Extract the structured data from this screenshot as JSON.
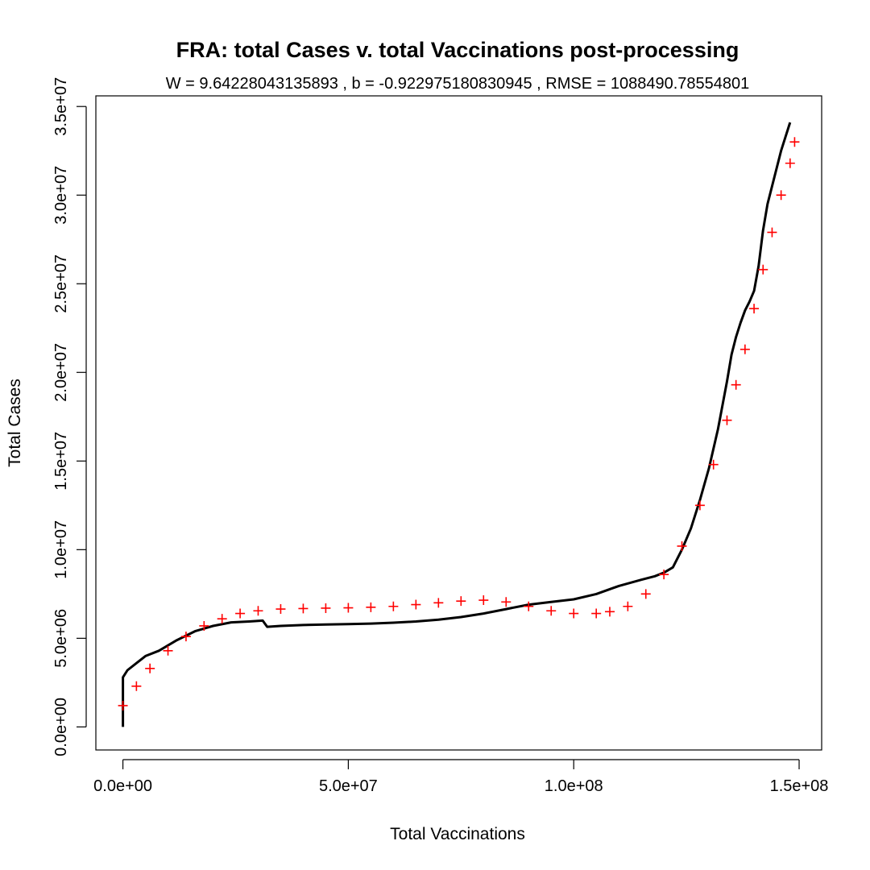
{
  "chart_data": {
    "type": "line",
    "title": "FRA: total Cases v. total Vaccinations post-processing",
    "subtitle": "W = 9.64228043135893 , b = -0.922975180830945 , RMSE = 1088490.78554801",
    "xlabel": "Total Vaccinations",
    "ylabel": "Total Cases",
    "xlim": [
      -6000000,
      155000000
    ],
    "ylim": [
      -1300000,
      35600000
    ],
    "x_ticks": [
      0,
      50000000,
      100000000,
      150000000
    ],
    "x_tick_labels": [
      "0.0e+00",
      "5.0e+07",
      "1.0e+08",
      "1.5e+08"
    ],
    "y_ticks": [
      0,
      5000000,
      10000000,
      15000000,
      20000000,
      25000000,
      30000000,
      35000000
    ],
    "y_tick_labels": [
      "0.0e+00",
      "5.0e+06",
      "1.0e+07",
      "1.5e+07",
      "2.0e+07",
      "2.5e+07",
      "3.0e+07",
      "3.5e+07"
    ],
    "grid": false,
    "series": [
      {
        "style": "line",
        "color": "#000000",
        "x": [
          0,
          0,
          0,
          1000000,
          3000000,
          5000000,
          8000000,
          12000000,
          16000000,
          20000000,
          24000000,
          28000000,
          31000000,
          32000000,
          35000000,
          40000000,
          45000000,
          50000000,
          55000000,
          60000000,
          65000000,
          70000000,
          75000000,
          80000000,
          85000000,
          90000000,
          95000000,
          100000000,
          105000000,
          110000000,
          115000000,
          118000000,
          120000000,
          122000000,
          124000000,
          126000000,
          128000000,
          130000000,
          132000000,
          134000000,
          135000000,
          136000000,
          137000000,
          138000000,
          139000000,
          140000000,
          141000000,
          142000000,
          143000000,
          144000000,
          145000000,
          146000000,
          147000000,
          148000000
        ],
        "y": [
          0,
          1500000,
          2800000,
          3200000,
          3600000,
          4000000,
          4300000,
          4900000,
          5400000,
          5700000,
          5900000,
          5950000,
          6000000,
          5650000,
          5700000,
          5750000,
          5780000,
          5800000,
          5830000,
          5880000,
          5950000,
          6050000,
          6200000,
          6400000,
          6650000,
          6900000,
          7050000,
          7200000,
          7500000,
          7950000,
          8300000,
          8500000,
          8700000,
          9000000,
          10000000,
          11200000,
          12800000,
          14600000,
          16800000,
          19500000,
          21000000,
          22000000,
          22800000,
          23500000,
          24000000,
          24600000,
          26000000,
          28000000,
          29500000,
          30500000,
          31500000,
          32500000,
          33300000,
          34100000
        ]
      },
      {
        "style": "plus-markers",
        "color": "#ff0000",
        "x": [
          0,
          3000000,
          6000000,
          10000000,
          14000000,
          18000000,
          22000000,
          26000000,
          30000000,
          35000000,
          40000000,
          45000000,
          50000000,
          55000000,
          60000000,
          65000000,
          70000000,
          75000000,
          80000000,
          85000000,
          90000000,
          95000000,
          100000000,
          105000000,
          108000000,
          112000000,
          116000000,
          120000000,
          124000000,
          128000000,
          131000000,
          134000000,
          136000000,
          138000000,
          140000000,
          142000000,
          144000000,
          146000000,
          148000000,
          149000000
        ],
        "y": [
          1200000,
          2300000,
          3300000,
          4300000,
          5100000,
          5700000,
          6100000,
          6400000,
          6550000,
          6650000,
          6680000,
          6700000,
          6720000,
          6750000,
          6800000,
          6900000,
          7000000,
          7100000,
          7150000,
          7050000,
          6800000,
          6550000,
          6400000,
          6400000,
          6500000,
          6800000,
          7500000,
          8600000,
          10200000,
          12500000,
          14800000,
          17300000,
          19300000,
          21300000,
          23600000,
          25800000,
          27900000,
          30000000,
          31800000,
          33000000
        ]
      }
    ]
  }
}
